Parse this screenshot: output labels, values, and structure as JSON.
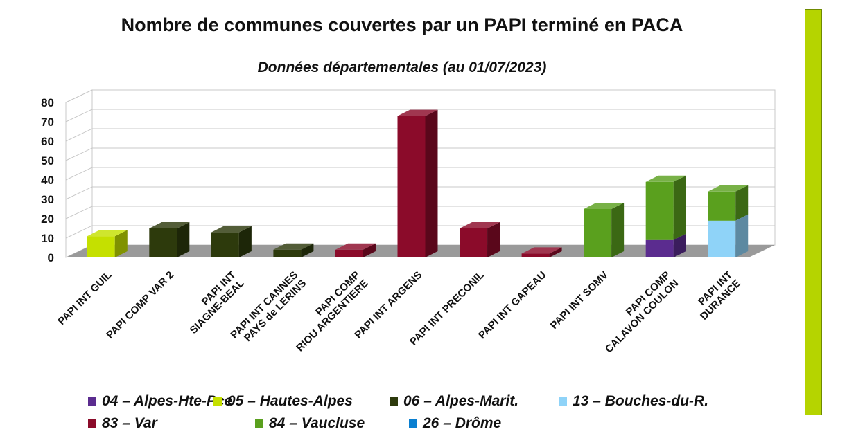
{
  "chart_data": {
    "type": "bar",
    "stacked": true,
    "three_d": true,
    "title": "Nombre de communes couvertes par un PAPI terminé en PACA",
    "subtitle": "Données départementales (au 01/07/2023)",
    "ylim": [
      0,
      80
    ],
    "yticks": [
      0,
      10,
      20,
      30,
      40,
      50,
      60,
      70,
      80
    ],
    "grid": true,
    "legend_position": "bottom",
    "categories": [
      "PAPI INT GUIL",
      "PAPI  COMP VAR 2",
      "PAPI INT\nSIAGNE-BEAL",
      "PAPI INT CANNES\nPAYS de LERINS",
      "PAPI COMP\nRIOU ARGENTIERE",
      "PAPI INT ARGENS",
      "PAPI INT PRECONIL",
      "PAPI INT GAPEAU",
      "PAPI INT SOMV",
      "PAPI COMP\nCALAVON COULON",
      "PAPI INT\nDURANCE"
    ],
    "series": [
      {
        "name": "04 – Alpes-Hte-Pce",
        "color": "#5b2c8f",
        "values": [
          0,
          0,
          0,
          0,
          0,
          0,
          0,
          0,
          0,
          9,
          0
        ]
      },
      {
        "name": "05 – Hautes-Alpes",
        "color": "#c5e000",
        "values": [
          11,
          0,
          0,
          0,
          0,
          0,
          0,
          0,
          0,
          0,
          0
        ]
      },
      {
        "name": "06 – Alpes-Marit.",
        "color": "#2d3a0c",
        "values": [
          0,
          15,
          13,
          4,
          0,
          0,
          0,
          0,
          0,
          0,
          0
        ]
      },
      {
        "name": "13 –  Bouches-du-R.",
        "color": "#8fd3f8",
        "values": [
          0,
          0,
          0,
          0,
          0,
          0,
          0,
          0,
          0,
          0,
          19
        ]
      },
      {
        "name": "83 –  Var",
        "color": "#8b0b2a",
        "values": [
          0,
          0,
          0,
          0,
          4,
          73,
          15,
          2,
          0,
          0,
          0
        ]
      },
      {
        "name": "84 –  Vaucluse",
        "color": "#5aa01e",
        "values": [
          0,
          0,
          0,
          0,
          0,
          0,
          0,
          0,
          25,
          30,
          15
        ]
      },
      {
        "name": "26  –  Drôme",
        "color": "#0a7fd0",
        "values": [
          0,
          0,
          0,
          0,
          0,
          0,
          0,
          0,
          0,
          0,
          0
        ]
      }
    ]
  }
}
